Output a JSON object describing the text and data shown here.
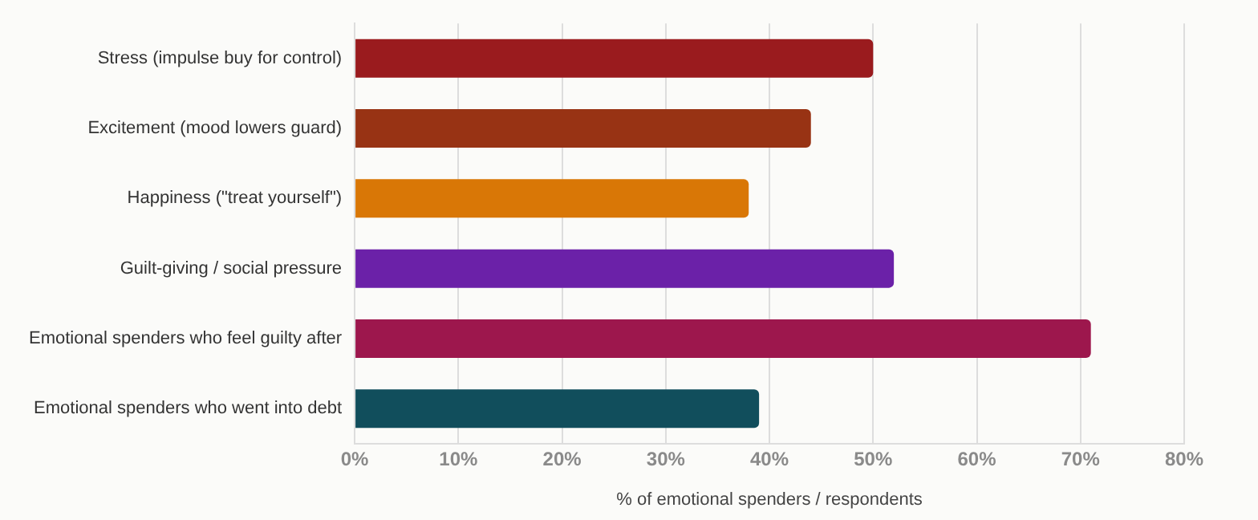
{
  "chart_data": {
    "type": "bar",
    "orientation": "horizontal",
    "xlabel": "% of emotional spenders / respondents",
    "categories": [
      "Stress (impulse buy for control)",
      "Excitement (mood lowers guard)",
      "Happiness (\"treat yourself\")",
      "Guilt-giving / social pressure",
      "Emotional spenders who feel guilty after",
      "Emotional spenders who went into debt"
    ],
    "values": [
      50,
      44,
      38,
      52,
      71,
      39
    ],
    "colors": [
      "#9a1b1e",
      "#983314",
      "#d97706",
      "#6b21a8",
      "#9d174d",
      "#114e5c"
    ],
    "xlim": [
      0,
      80
    ],
    "xticks": [
      {
        "value": 0,
        "label": "0%"
      },
      {
        "value": 10,
        "label": "10%"
      },
      {
        "value": 20,
        "label": "20%"
      },
      {
        "value": 30,
        "label": "30%"
      },
      {
        "value": 40,
        "label": "40%"
      },
      {
        "value": 50,
        "label": "50%"
      },
      {
        "value": 60,
        "label": "60%"
      },
      {
        "value": 70,
        "label": "70%"
      },
      {
        "value": 80,
        "label": "80%"
      }
    ],
    "grid": "x",
    "legend": false
  }
}
